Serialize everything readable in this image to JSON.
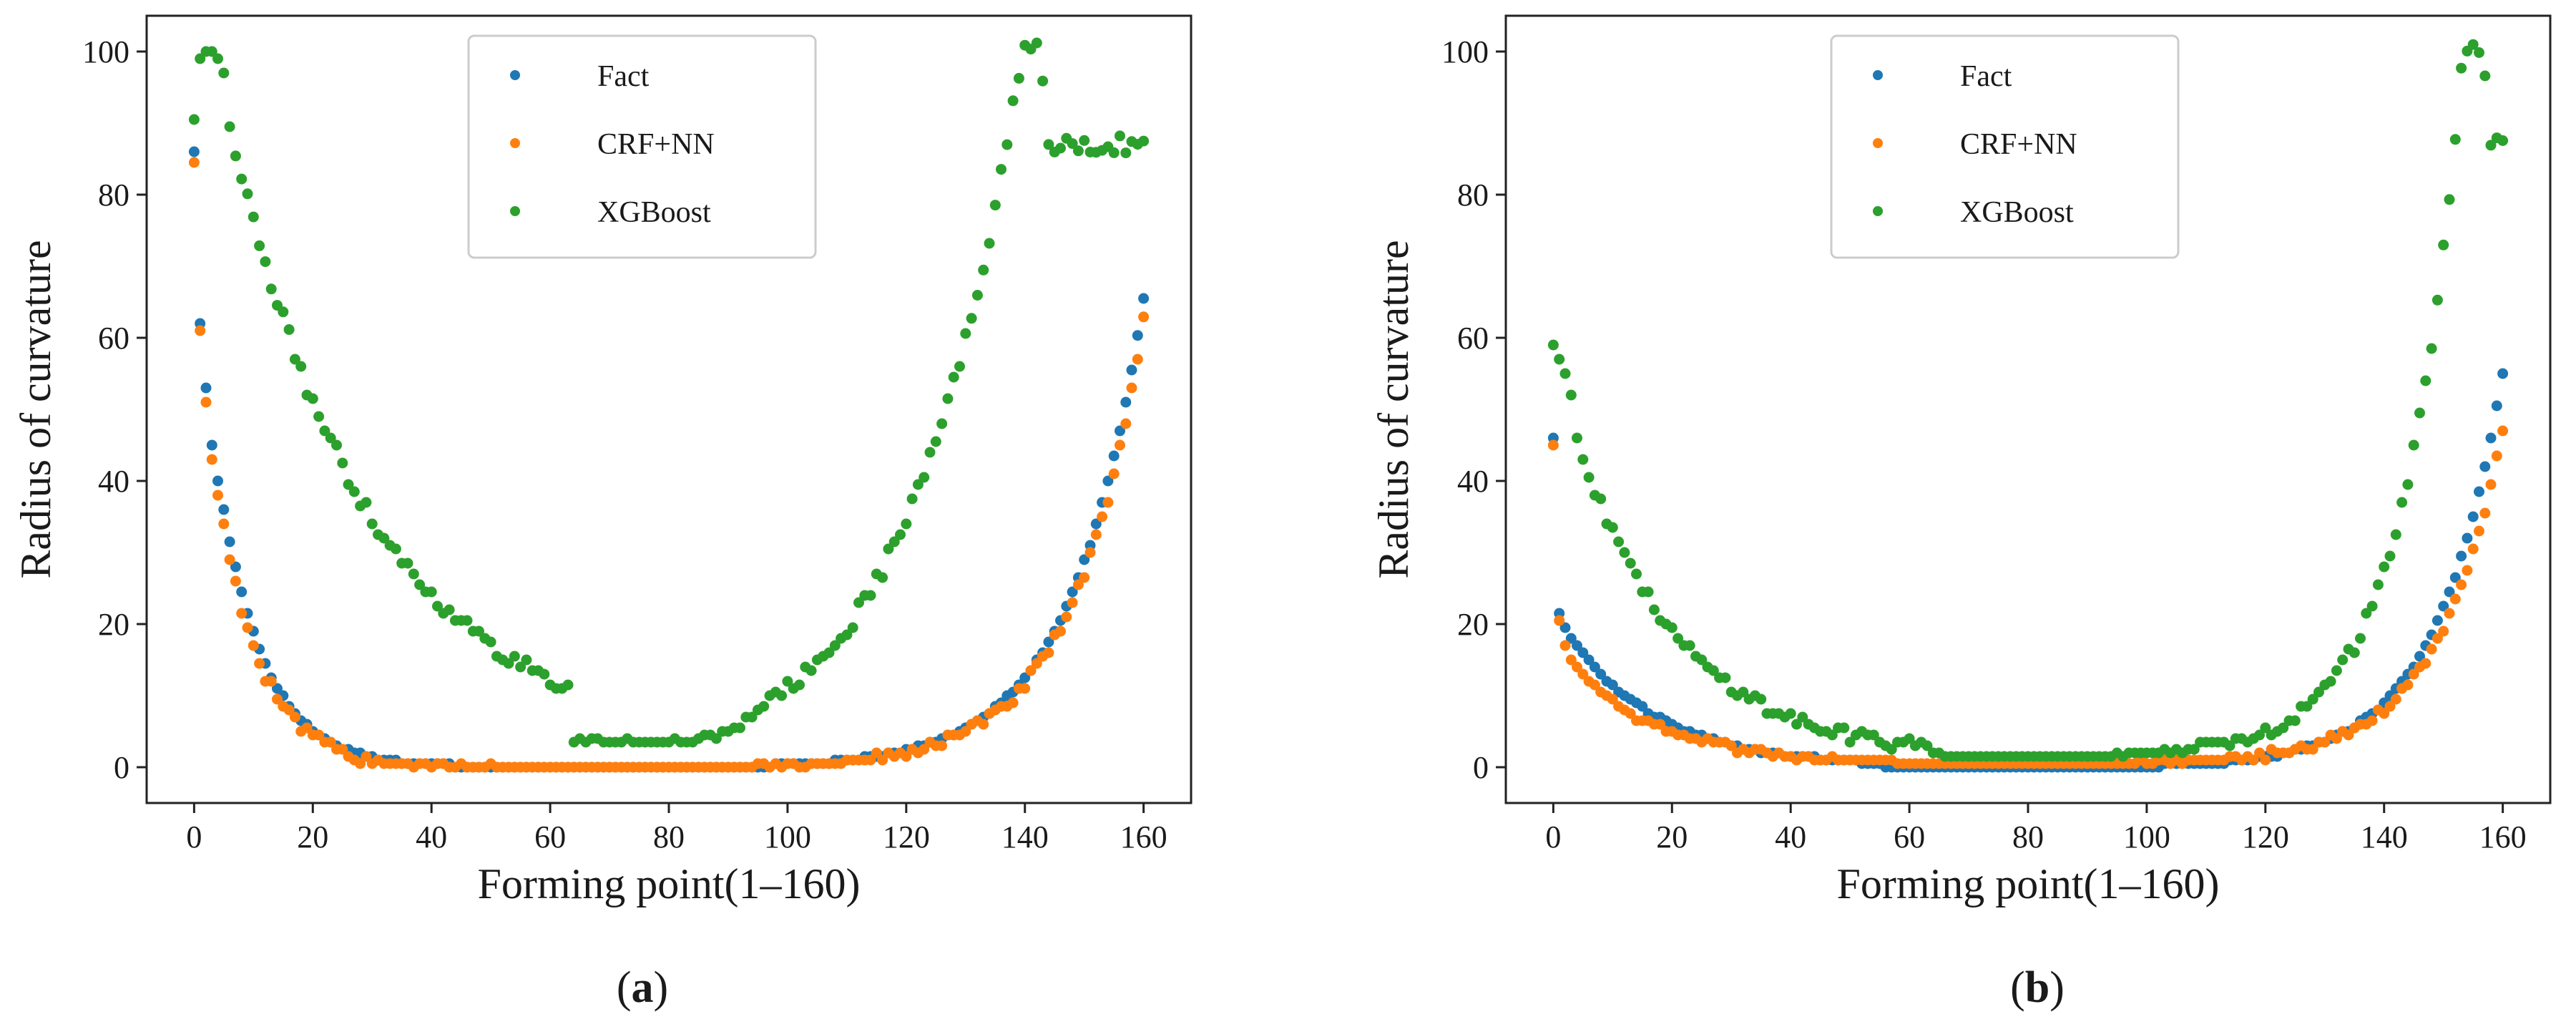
{
  "figure": {
    "captions": [
      {
        "open": "(",
        "letter": "a",
        "close": ")"
      },
      {
        "open": "(",
        "letter": "b",
        "close": ")"
      }
    ]
  },
  "colors": {
    "Fact": "#1f77b4",
    "CRF+NN": "#ff7f0e",
    "XGBoost": "#2ca02c"
  },
  "chart_data": [
    {
      "type": "scatter",
      "panel": "a",
      "xlabel": "Forming point(1–160)",
      "ylabel": "Radius of curvature",
      "xlim": [
        -8,
        168
      ],
      "ylim": [
        -5,
        105
      ],
      "xticks": [
        0,
        20,
        40,
        60,
        80,
        100,
        120,
        140,
        160
      ],
      "yticks": [
        0,
        20,
        40,
        60,
        80,
        100
      ],
      "legend": {
        "position": "top-center",
        "entries": [
          "Fact",
          "CRF+NN",
          "XGBoost"
        ]
      },
      "series": [
        {
          "name": "Fact",
          "shape": "u_decay",
          "x_range": [
            0,
            160
          ],
          "step": 1,
          "start_values": [
            86,
            62,
            53,
            45,
            40,
            36
          ],
          "rise_end": 65.5,
          "min": 0,
          "min_range": [
            58,
            84
          ],
          "left_rate": 0.13,
          "right_rate": 0.082
        },
        {
          "name": "CRF+NN",
          "shape": "u_decay",
          "x_range": [
            0,
            160
          ],
          "step": 1,
          "start_values": [
            84.5,
            61,
            51,
            43,
            38,
            34
          ],
          "rise_end": 62.5,
          "min": 0,
          "min_range": [
            60,
            86
          ],
          "left_rate": 0.14,
          "right_rate": 0.084,
          "jitter": 1.6
        },
        {
          "name": "XGBoost",
          "shape": "u_decay",
          "x_range": [
            0,
            160
          ],
          "step": 1,
          "start_values": [
            90.5,
            99,
            100,
            100,
            99,
            97,
            89.5
          ],
          "peak": {
            "x": [
              140,
              142
            ],
            "value": 100
          },
          "plateau": {
            "x": [
              144,
              160
            ],
            "value": 87
          },
          "min": 3.5,
          "min_range": [
            64,
            84
          ],
          "left_rate": 0.042,
          "right_rate": 0.052,
          "jitter": 2.5
        }
      ]
    },
    {
      "type": "scatter",
      "panel": "b",
      "xlabel": "Forming point(1–160)",
      "ylabel": "Radius of curvature",
      "xlim": [
        -8,
        168
      ],
      "ylim": [
        -5,
        105
      ],
      "xticks": [
        0,
        20,
        40,
        60,
        80,
        100,
        120,
        140,
        160
      ],
      "yticks": [
        0,
        20,
        40,
        60,
        80,
        100
      ],
      "legend": {
        "position": "top-left",
        "entries": [
          "Fact",
          "CRF+NN",
          "XGBoost"
        ]
      },
      "series": [
        {
          "name": "Fact",
          "shape": "u_decay",
          "x_range": [
            0,
            160
          ],
          "step": 1,
          "start_values": [
            46,
            21.5,
            19.5,
            18
          ],
          "rise_end": 55,
          "min": 0,
          "min_range": [
            56,
            86
          ],
          "left_rate": 0.065,
          "right_rate": 0.09
        },
        {
          "name": "CRF+NN",
          "shape": "u_decay",
          "x_range": [
            0,
            160
          ],
          "step": 1,
          "start_values": [
            45,
            20.5,
            17,
            15
          ],
          "rise_end": 47,
          "min": 0.5,
          "min_range": [
            58,
            86
          ],
          "left_rate": 0.07,
          "right_rate": 0.09,
          "jitter": 1.2
        },
        {
          "name": "XGBoost",
          "shape": "u_decay",
          "x_range": [
            0,
            160
          ],
          "step": 1,
          "start_values": [
            59,
            57,
            55,
            52,
            46
          ],
          "peak": {
            "x": [
              154,
              156
            ],
            "value": 100
          },
          "plateau": {
            "x": [
              158,
              160
            ],
            "value": 87
          },
          "min": 1.5,
          "min_range": [
            66,
            84
          ],
          "left_rate": 0.058,
          "right_rate": 0.1,
          "jitter": 2.0
        }
      ]
    }
  ]
}
